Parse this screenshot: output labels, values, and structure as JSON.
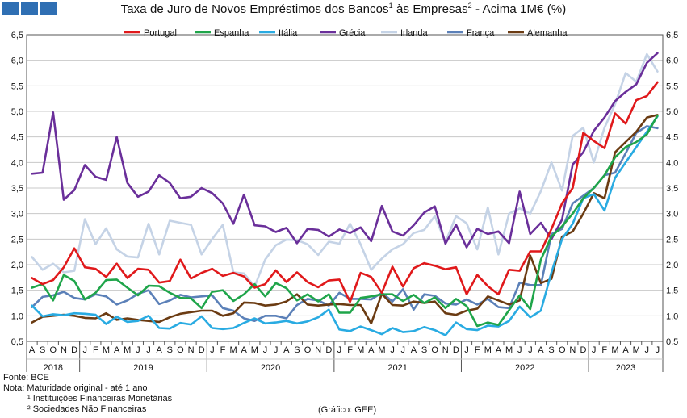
{
  "header": {
    "title_parts": [
      "Taxa de Juro de Novos Empréstimos dos Bancos",
      "1",
      " às Empresas",
      "2",
      " - Acima 1M€ (%)"
    ]
  },
  "colors": {
    "Portugal": "#e0191b",
    "Espanha": "#1fa54a",
    "Itália": "#29abe2",
    "Grécia": "#6a2f9a",
    "Irlanda": "#c5d3e6",
    "França": "#5b80b8",
    "Alemanha": "#6b3b12"
  },
  "footer": {
    "source": "Fonte: BCE",
    "note": "Nota: Maturidade original - até 1 ano",
    "note1": "¹ Instituições Financeiras Monetárias",
    "note2": "² Sociedades Não Financeiras",
    "credit": "(Gráfico: GEE)"
  },
  "chart_data": {
    "type": "line",
    "title": "Taxa de Juro de Novos Empréstimos dos Bancos¹ às Empresas² - Acima 1M€ (%)",
    "ylim": [
      0.5,
      6.5
    ],
    "yticks": [
      "0,5",
      "1,0",
      "1,5",
      "2,0",
      "2,5",
      "3,0",
      "3,5",
      "4,0",
      "4,5",
      "5,0",
      "5,5",
      "6,0",
      "6,5"
    ],
    "grid": true,
    "legend_position": "top",
    "month_labels": [
      "A",
      "S",
      "O",
      "N",
      "D",
      "J",
      "F",
      "M",
      "A",
      "M",
      "J",
      "J",
      "A",
      "S",
      "O",
      "N",
      "D",
      "J",
      "F",
      "M",
      "A",
      "M",
      "J",
      "J",
      "A",
      "S",
      "O",
      "N",
      "D",
      "J",
      "F",
      "M",
      "A",
      "M",
      "J",
      "J",
      "A",
      "S",
      "O",
      "N",
      "D",
      "J",
      "F",
      "M",
      "A",
      "M",
      "J",
      "J",
      "A",
      "S",
      "O",
      "N",
      "D",
      "J",
      "F",
      "M",
      "A",
      "M",
      "J",
      "J"
    ],
    "years": [
      {
        "label": "2018",
        "start": 0,
        "end": 4
      },
      {
        "label": "2019",
        "start": 5,
        "end": 16
      },
      {
        "label": "2020",
        "start": 17,
        "end": 28
      },
      {
        "label": "2021",
        "start": 29,
        "end": 40
      },
      {
        "label": "2022",
        "start": 41,
        "end": 52
      },
      {
        "label": "2023",
        "start": 53,
        "end": 59
      }
    ],
    "series": [
      {
        "name": "Portugal",
        "values": [
          1.74,
          1.62,
          1.7,
          1.95,
          2.32,
          1.95,
          1.92,
          1.76,
          2.02,
          1.74,
          1.92,
          1.9,
          1.65,
          1.68,
          2.1,
          1.73,
          1.84,
          1.92,
          1.78,
          1.84,
          1.77,
          1.55,
          1.62,
          1.89,
          1.66,
          1.85,
          1.66,
          1.56,
          1.69,
          1.71,
          1.27,
          1.84,
          1.76,
          1.45,
          1.96,
          1.57,
          1.93,
          2.03,
          1.98,
          1.91,
          1.95,
          1.42,
          1.8,
          1.58,
          1.42,
          1.9,
          1.88,
          2.26,
          2.26,
          2.7,
          3.2,
          3.5,
          4.58,
          4.42,
          4.28,
          4.96,
          4.76,
          5.22,
          5.3,
          5.57
        ]
      },
      {
        "name": "Espanha",
        "values": [
          1.55,
          1.62,
          1.3,
          1.8,
          1.68,
          1.32,
          1.45,
          1.7,
          1.71,
          1.55,
          1.4,
          1.59,
          1.58,
          1.45,
          1.35,
          1.34,
          1.15,
          1.47,
          1.5,
          1.29,
          1.42,
          1.62,
          1.38,
          1.64,
          1.54,
          1.3,
          1.42,
          1.28,
          1.42,
          1.06,
          1.06,
          1.35,
          1.38,
          1.42,
          1.42,
          1.29,
          1.41,
          1.25,
          1.36,
          1.15,
          1.33,
          1.19,
          0.8,
          0.87,
          0.82,
          1.11,
          1.4,
          1.13,
          2.1,
          2.55,
          2.75,
          3.0,
          3.3,
          3.5,
          3.75,
          4.1,
          4.3,
          4.4,
          4.55,
          4.92
        ]
      },
      {
        "name": "Itália",
        "values": [
          1.2,
          0.99,
          1.03,
          1.01,
          1.05,
          1.04,
          1.02,
          0.84,
          0.98,
          0.88,
          0.9,
          1.0,
          0.76,
          0.75,
          0.86,
          0.83,
          0.99,
          0.76,
          0.74,
          0.76,
          0.86,
          0.95,
          0.85,
          0.87,
          0.9,
          0.85,
          0.89,
          0.97,
          1.12,
          0.73,
          0.7,
          0.79,
          0.72,
          0.64,
          0.76,
          0.68,
          0.7,
          0.78,
          0.72,
          0.62,
          0.87,
          0.74,
          0.72,
          0.81,
          0.79,
          0.9,
          1.18,
          0.97,
          1.1,
          1.85,
          2.5,
          2.8,
          3.3,
          3.38,
          3.06,
          3.7,
          4.0,
          4.3,
          4.6,
          4.9
        ]
      },
      {
        "name": "Grécia",
        "values": [
          3.78,
          3.8,
          4.98,
          3.27,
          3.46,
          3.95,
          3.72,
          3.66,
          4.5,
          3.6,
          3.33,
          3.43,
          3.75,
          3.6,
          3.3,
          3.33,
          3.5,
          3.4,
          3.2,
          2.8,
          3.37,
          2.77,
          2.75,
          2.64,
          2.72,
          2.42,
          2.7,
          2.68,
          2.55,
          2.69,
          2.62,
          2.73,
          2.46,
          3.15,
          2.65,
          2.57,
          2.77,
          3.02,
          3.14,
          2.41,
          2.78,
          2.34,
          2.7,
          2.6,
          2.65,
          2.42,
          3.43,
          2.6,
          2.82,
          2.5,
          2.88,
          3.96,
          4.2,
          4.62,
          4.88,
          5.2,
          5.38,
          5.53,
          5.95,
          6.14
        ]
      },
      {
        "name": "Irlanda",
        "values": [
          2.15,
          1.9,
          2.02,
          1.85,
          1.88,
          2.89,
          2.4,
          2.71,
          2.3,
          2.16,
          2.14,
          2.8,
          2.2,
          2.86,
          2.82,
          2.78,
          2.2,
          2.5,
          2.78,
          1.85,
          1.83,
          1.57,
          2.1,
          2.38,
          2.49,
          2.48,
          2.4,
          2.19,
          2.45,
          2.41,
          2.8,
          2.4,
          1.9,
          2.12,
          2.3,
          2.4,
          2.62,
          2.68,
          2.95,
          2.44,
          2.95,
          2.81,
          2.3,
          3.12,
          2.2,
          3.0,
          3.1,
          3.0,
          3.44,
          4.0,
          3.45,
          4.52,
          4.68,
          4.0,
          4.68,
          5.14,
          5.75,
          5.58,
          6.12,
          5.78
        ]
      },
      {
        "name": "França",
        "values": [
          1.17,
          1.37,
          1.4,
          1.47,
          1.35,
          1.32,
          1.42,
          1.38,
          1.22,
          1.3,
          1.43,
          1.5,
          1.23,
          1.3,
          1.41,
          1.36,
          1.38,
          1.4,
          1.15,
          1.1,
          0.95,
          0.9,
          1.0,
          1.0,
          0.95,
          1.21,
          1.33,
          1.3,
          1.2,
          1.45,
          1.33,
          1.33,
          1.32,
          1.45,
          1.28,
          1.52,
          1.12,
          1.42,
          1.39,
          1.24,
          1.22,
          1.32,
          1.22,
          1.33,
          1.17,
          1.15,
          1.65,
          1.6,
          1.6,
          2.6,
          2.7,
          3.2,
          3.35,
          3.5,
          3.75,
          3.8,
          4.18,
          4.58,
          4.71,
          4.67
        ]
      },
      {
        "name": "Alemanha",
        "values": [
          0.87,
          0.98,
          1.0,
          1.02,
          1.0,
          0.96,
          0.95,
          1.05,
          0.92,
          0.95,
          0.92,
          0.9,
          0.88,
          0.97,
          1.04,
          1.07,
          1.1,
          1.1,
          1.0,
          1.05,
          1.26,
          1.25,
          1.2,
          1.22,
          1.28,
          1.42,
          1.22,
          1.2,
          1.22,
          1.23,
          1.21,
          1.21,
          0.85,
          1.43,
          1.21,
          1.2,
          1.28,
          1.25,
          1.28,
          1.05,
          1.02,
          1.1,
          1.14,
          1.38,
          1.3,
          1.22,
          1.3,
          2.18,
          1.64,
          1.72,
          2.55,
          2.65,
          3.0,
          3.4,
          3.3,
          4.2,
          4.4,
          4.6,
          4.88,
          4.93
        ]
      }
    ]
  }
}
